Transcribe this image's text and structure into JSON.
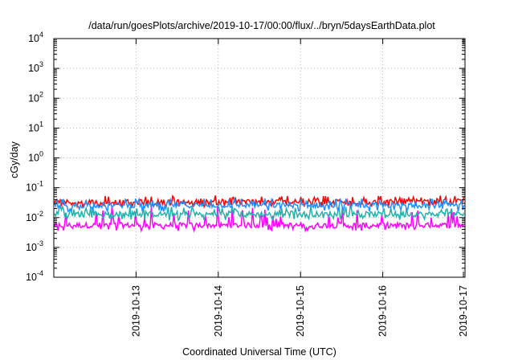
{
  "chart_data": {
    "type": "line",
    "title": "/data/run/goesPlots/archive/2019-10-17/00:00/flux/../bryn/5daysEarthData.plot",
    "xlabel": "Coordinated Universal Time (UTC)",
    "ylabel": "cGy/day",
    "y_scale": "log",
    "ylim": [
      0.0001,
      10000
    ],
    "y_ticks": [
      {
        "base": "10",
        "exp": "-4",
        "value": 0.0001
      },
      {
        "base": "10",
        "exp": "-3",
        "value": 0.001
      },
      {
        "base": "10",
        "exp": "-2",
        "value": 0.01
      },
      {
        "base": "10",
        "exp": "-1",
        "value": 0.1
      },
      {
        "base": "10",
        "exp": "0",
        "value": 1
      },
      {
        "base": "10",
        "exp": "1",
        "value": 10
      },
      {
        "base": "10",
        "exp": "2",
        "value": 100
      },
      {
        "base": "10",
        "exp": "3",
        "value": 1000
      },
      {
        "base": "10",
        "exp": "4",
        "value": 10000
      }
    ],
    "xlim": [
      "2019-10-12T00:00",
      "2019-10-17T00:00"
    ],
    "x_ticks": [
      "2019-10-13",
      "2019-10-14",
      "2019-10-15",
      "2019-10-16",
      "2019-10-17"
    ],
    "grid": true,
    "legend": "none",
    "series": [
      {
        "color": "#ff0000",
        "base_value": 0.033,
        "spike_value": 0.055,
        "dip_value": 0.022
      },
      {
        "color": "#1e90ff",
        "base_value": 0.026,
        "spike_value": 0.045,
        "dip_value": 0.016
      },
      {
        "color": "#20b2aa",
        "base_value": 0.013,
        "spike_value": 0.025,
        "dip_value": 0.008
      },
      {
        "color": "#ff00ff",
        "base_value": 0.0055,
        "spike_value": 0.025,
        "dip_value": 0.0035
      }
    ]
  }
}
